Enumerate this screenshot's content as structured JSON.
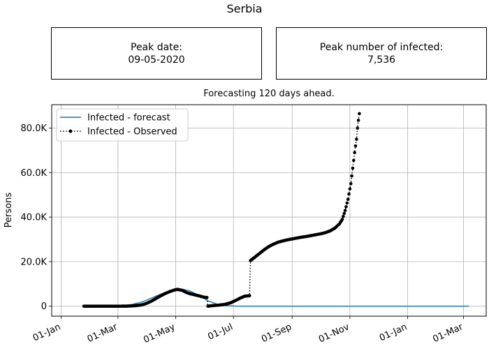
{
  "figure": {
    "title": "Serbia"
  },
  "boxes": {
    "peak_date": {
      "label": "Peak date:",
      "value": "09-05-2020"
    },
    "peak_number": {
      "label": "Peak number of infected:",
      "value": "7,536"
    }
  },
  "chart_data": {
    "type": "line",
    "title": "Forecasting 120 days ahead.",
    "xlabel": "",
    "ylabel": "Persons",
    "x_is_date": true,
    "xlim": [
      "2019-12-22",
      "2021-03-25"
    ],
    "ylim": [
      -4500,
      90500
    ],
    "grid": true,
    "legend_position": "upper left",
    "x_ticks": [
      {
        "date": "2020-01-01",
        "label": "01-Jan"
      },
      {
        "date": "2020-03-01",
        "label": "01-Mar"
      },
      {
        "date": "2020-05-01",
        "label": "01-May"
      },
      {
        "date": "2020-07-01",
        "label": "01-Jul"
      },
      {
        "date": "2020-09-01",
        "label": "01-Sep"
      },
      {
        "date": "2020-11-01",
        "label": "01-Nov"
      },
      {
        "date": "2021-01-01",
        "label": "01-Jan"
      },
      {
        "date": "2021-03-01",
        "label": "01-Mar"
      }
    ],
    "y_ticks": [
      {
        "value": 0,
        "label": "0"
      },
      {
        "value": 20000,
        "label": "20.0K"
      },
      {
        "value": 40000,
        "label": "40.0K"
      },
      {
        "value": 60000,
        "label": "60.0K"
      },
      {
        "value": 80000,
        "label": "80.0K"
      }
    ],
    "series": [
      {
        "name": "Infected - forecast",
        "color": "#1f77b4",
        "style": "solid",
        "points": [
          [
            "2020-01-25",
            0
          ],
          [
            "2020-02-15",
            0
          ],
          [
            "2020-02-25",
            50
          ],
          [
            "2020-03-05",
            200
          ],
          [
            "2020-03-15",
            700
          ],
          [
            "2020-03-25",
            1700
          ],
          [
            "2020-04-01",
            2800
          ],
          [
            "2020-04-10",
            4500
          ],
          [
            "2020-04-20",
            6200
          ],
          [
            "2020-05-01",
            7400
          ],
          [
            "2020-05-09",
            7536
          ],
          [
            "2020-05-15",
            7000
          ],
          [
            "2020-05-25",
            5000
          ],
          [
            "2020-06-05",
            2200
          ],
          [
            "2020-06-15",
            700
          ],
          [
            "2020-06-25",
            150
          ],
          [
            "2020-07-05",
            20
          ],
          [
            "2020-07-20",
            0
          ],
          [
            "2020-09-01",
            0
          ],
          [
            "2020-11-01",
            0
          ],
          [
            "2021-01-01",
            0
          ],
          [
            "2021-03-07",
            0
          ]
        ]
      },
      {
        "name": "Infected - Observed",
        "color": "#000000",
        "style": "dotted",
        "points": [
          [
            "2020-01-25",
            0
          ],
          [
            "2020-02-01",
            0
          ],
          [
            "2020-02-10",
            0
          ],
          [
            "2020-02-20",
            0
          ],
          [
            "2020-03-01",
            0
          ],
          [
            "2020-03-10",
            20
          ],
          [
            "2020-03-15",
            100
          ],
          [
            "2020-03-20",
            250
          ],
          [
            "2020-03-25",
            500
          ],
          [
            "2020-03-28",
            800
          ],
          [
            "2020-04-01",
            1400
          ],
          [
            "2020-04-05",
            2200
          ],
          [
            "2020-04-10",
            3400
          ],
          [
            "2020-04-15",
            4600
          ],
          [
            "2020-04-20",
            5700
          ],
          [
            "2020-04-25",
            6600
          ],
          [
            "2020-04-30",
            7300
          ],
          [
            "2020-05-03",
            7536
          ],
          [
            "2020-05-08",
            7100
          ],
          [
            "2020-05-12",
            6200
          ],
          [
            "2020-05-16",
            5600
          ],
          [
            "2020-05-21",
            5100
          ],
          [
            "2020-05-26",
            4600
          ],
          [
            "2020-05-31",
            4000
          ],
          [
            "2020-06-03",
            3900
          ],
          [
            "2020-06-04",
            0
          ],
          [
            "2020-06-10",
            300
          ],
          [
            "2020-06-16",
            500
          ],
          [
            "2020-06-22",
            800
          ],
          [
            "2020-06-28",
            1500
          ],
          [
            "2020-07-03",
            2500
          ],
          [
            "2020-07-08",
            3600
          ],
          [
            "2020-07-13",
            4500
          ],
          [
            "2020-07-18",
            4700
          ],
          [
            "2020-07-19",
            20500
          ],
          [
            "2020-07-23",
            21800
          ],
          [
            "2020-07-28",
            23500
          ],
          [
            "2020-08-02",
            25200
          ],
          [
            "2020-08-07",
            26700
          ],
          [
            "2020-08-12",
            27800
          ],
          [
            "2020-08-17",
            28700
          ],
          [
            "2020-08-22",
            29300
          ],
          [
            "2020-08-27",
            29800
          ],
          [
            "2020-09-01",
            30200
          ],
          [
            "2020-09-06",
            30600
          ],
          [
            "2020-09-11",
            31000
          ],
          [
            "2020-09-16",
            31300
          ],
          [
            "2020-09-21",
            31700
          ],
          [
            "2020-09-26",
            32100
          ],
          [
            "2020-10-01",
            32500
          ],
          [
            "2020-10-06",
            33000
          ],
          [
            "2020-10-11",
            33800
          ],
          [
            "2020-10-16",
            35000
          ],
          [
            "2020-10-21",
            37000
          ],
          [
            "2020-10-24",
            39000
          ],
          [
            "2020-10-27",
            43000
          ],
          [
            "2020-10-30",
            48000
          ],
          [
            "2020-11-02",
            55000
          ],
          [
            "2020-11-04",
            62000
          ],
          [
            "2020-11-06",
            69000
          ],
          [
            "2020-11-08",
            75000
          ],
          [
            "2020-11-09",
            80000
          ],
          [
            "2020-11-10",
            83500
          ],
          [
            "2020-11-11",
            86500
          ]
        ]
      }
    ]
  }
}
